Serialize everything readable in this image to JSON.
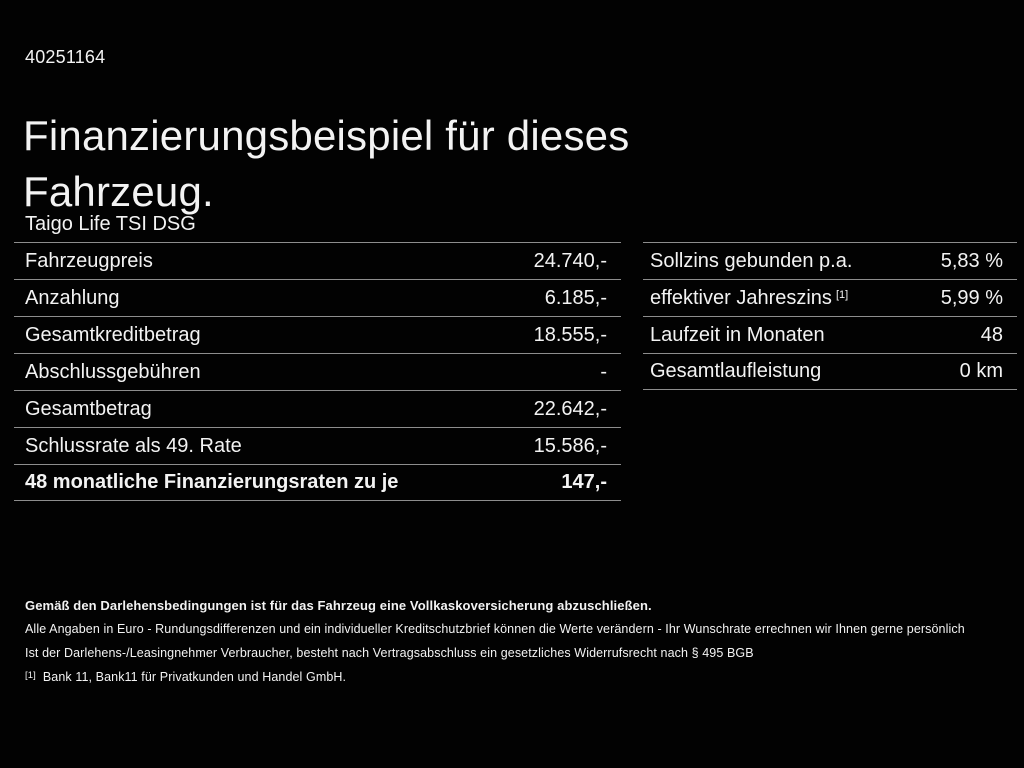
{
  "page": {
    "id_number": "40251164",
    "title_line1": "Finanzierungsbeispiel für dieses",
    "title_line2": "Fahrzeug.",
    "vehicle_name": "Taigo Life TSI DSG"
  },
  "left_table": {
    "rows": [
      {
        "label": "Fahrzeugpreis",
        "value": "24.740,-"
      },
      {
        "label": "Anzahlung",
        "value": "6.185,-"
      },
      {
        "label": "Gesamtkreditbetrag",
        "value": "18.555,-"
      },
      {
        "label": "Abschlussgebühren",
        "value": "-"
      },
      {
        "label": "Gesamtbetrag",
        "value": "22.642,-"
      },
      {
        "label": "Schlussrate als 49. Rate",
        "value": "15.586,-"
      },
      {
        "label": "48 monatliche Finanzierungsraten zu je",
        "value": "147,-"
      }
    ]
  },
  "right_table": {
    "rows": [
      {
        "label": "Sollzins gebunden p.a.",
        "sup": "",
        "value": "5,83 %"
      },
      {
        "label": "effektiver Jahreszins",
        "sup": "[1]",
        "value": "5,99 %"
      },
      {
        "label": "Laufzeit in Monaten",
        "sup": "",
        "value": "48"
      },
      {
        "label": "Gesamtlaufleistung",
        "sup": "",
        "value": "0 km"
      }
    ]
  },
  "footer": {
    "line1": "Gemäß den Darlehensbedingungen ist für das Fahrzeug eine Vollkaskoversicherung abzuschließen.",
    "line2": "Alle Angaben in Euro - Rundungsdifferenzen und ein individueller Kreditschutzbrief können die Werte verändern - Ihr Wunschrate errechnen wir Ihnen gerne persönlich",
    "line3": "Ist der Darlehens-/Leasingnehmer Verbraucher, besteht nach Vertragsabschluss ein gesetzliches Widerrufsrecht nach § 495 BGB",
    "footnote_marker": "[1]",
    "footnote_text": "Bank 11, Bank11 für Privatkunden und Handel GmbH."
  },
  "colors": {
    "background": "#020202",
    "text": "#f3f3f3",
    "separator": "#8d8d8d"
  }
}
